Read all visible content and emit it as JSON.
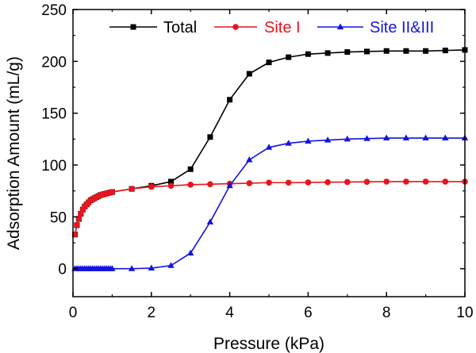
{
  "chart_data": {
    "type": "line",
    "title": "",
    "xlabel": "Pressure (kPa)",
    "ylabel": "Adsorption Amount (mL/g)",
    "xlim": [
      0,
      10
    ],
    "ylim": [
      -27,
      250
    ],
    "xticks": [
      0,
      2,
      4,
      6,
      8,
      10
    ],
    "yticks": [
      0,
      50,
      100,
      150,
      200,
      250
    ],
    "grid": false,
    "legend_position": "top",
    "series": [
      {
        "name": "Total",
        "color": "#000000",
        "marker": "square",
        "x": [
          0.05,
          0.1,
          0.15,
          0.2,
          0.25,
          0.3,
          0.35,
          0.4,
          0.45,
          0.5,
          0.55,
          0.6,
          0.65,
          0.7,
          0.75,
          0.8,
          0.85,
          0.9,
          0.95,
          1.0,
          1.5,
          2.0,
          2.5,
          3.0,
          3.5,
          4.0,
          4.5,
          5.0,
          5.5,
          6.0,
          6.5,
          7.0,
          7.5,
          8.0,
          8.5,
          9.0,
          9.5,
          10.0
        ],
        "y": [
          33,
          42,
          48,
          53,
          57,
          60,
          62,
          64,
          66,
          67,
          68,
          69,
          70,
          71,
          71.5,
          72,
          72.5,
          73,
          73.5,
          74,
          77,
          80,
          84,
          96,
          127,
          163,
          188,
          199,
          204,
          207,
          208,
          209,
          209.5,
          210,
          210,
          210,
          210.5,
          211
        ]
      },
      {
        "name": "Site I",
        "color": "#e8141c",
        "marker": "circle",
        "x": [
          0.05,
          0.1,
          0.15,
          0.2,
          0.25,
          0.3,
          0.35,
          0.4,
          0.45,
          0.5,
          0.55,
          0.6,
          0.65,
          0.7,
          0.75,
          0.8,
          0.85,
          0.9,
          0.95,
          1.0,
          1.5,
          2.0,
          2.5,
          3.0,
          3.5,
          4.0,
          4.5,
          5.0,
          5.5,
          6.0,
          6.5,
          7.0,
          7.5,
          8.0,
          8.5,
          9.0,
          9.5,
          10.0
        ],
        "y": [
          33,
          42,
          48,
          53,
          57,
          60,
          62,
          64,
          66,
          67,
          68,
          69,
          70,
          71,
          71.5,
          72,
          72.5,
          73,
          73.5,
          74,
          77,
          79,
          80,
          81,
          81.5,
          82,
          82.5,
          83,
          83,
          83.2,
          83.4,
          83.6,
          83.8,
          84,
          84,
          84,
          84,
          84
        ]
      },
      {
        "name": "Site II&III",
        "color": "#1414e0",
        "marker": "triangle",
        "x": [
          0.05,
          0.1,
          0.15,
          0.2,
          0.25,
          0.3,
          0.35,
          0.4,
          0.45,
          0.5,
          0.55,
          0.6,
          0.65,
          0.7,
          0.75,
          0.8,
          0.85,
          0.9,
          0.95,
          1.0,
          1.5,
          2.0,
          2.5,
          3.0,
          3.5,
          4.0,
          4.5,
          5.0,
          5.5,
          6.0,
          6.5,
          7.0,
          7.5,
          8.0,
          8.5,
          9.0,
          9.5,
          10.0
        ],
        "y": [
          0,
          0,
          0,
          0,
          0,
          0,
          0,
          0,
          0,
          0,
          0,
          0,
          0,
          0,
          0,
          0,
          0,
          0,
          0,
          0,
          0,
          0.5,
          3,
          15,
          45,
          80,
          105,
          117,
          121,
          123,
          124,
          125,
          125.5,
          126,
          126,
          126,
          126,
          126
        ]
      }
    ]
  }
}
